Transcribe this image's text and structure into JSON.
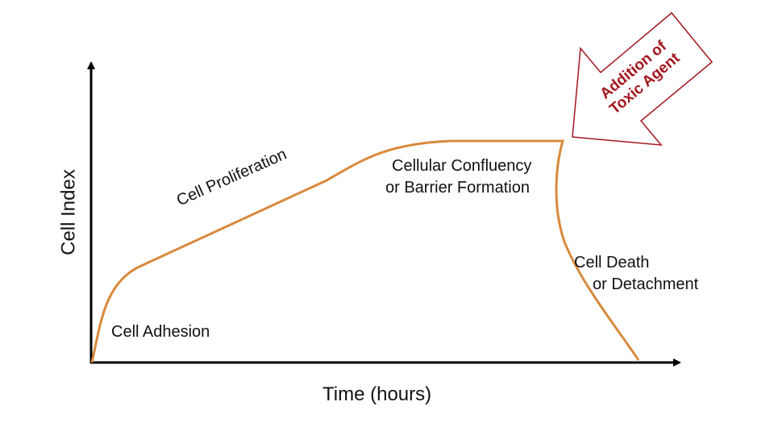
{
  "axes": {
    "y_label": "Cell Index",
    "x_label": "Time (hours)"
  },
  "phases": {
    "adhesion": "Cell Adhesion",
    "proliferation": "Cell Proliferation",
    "confluency_line1": "Cellular Confluency",
    "confluency_line2": "or Barrier Formation",
    "death_line1": "Cell Death",
    "death_line2": "or Detachment"
  },
  "callout": {
    "line1": "Addition of",
    "line2": "Toxic Agent"
  },
  "colors": {
    "curve": "#d9893c",
    "callout": "#a3161e",
    "axis": "#000000"
  }
}
